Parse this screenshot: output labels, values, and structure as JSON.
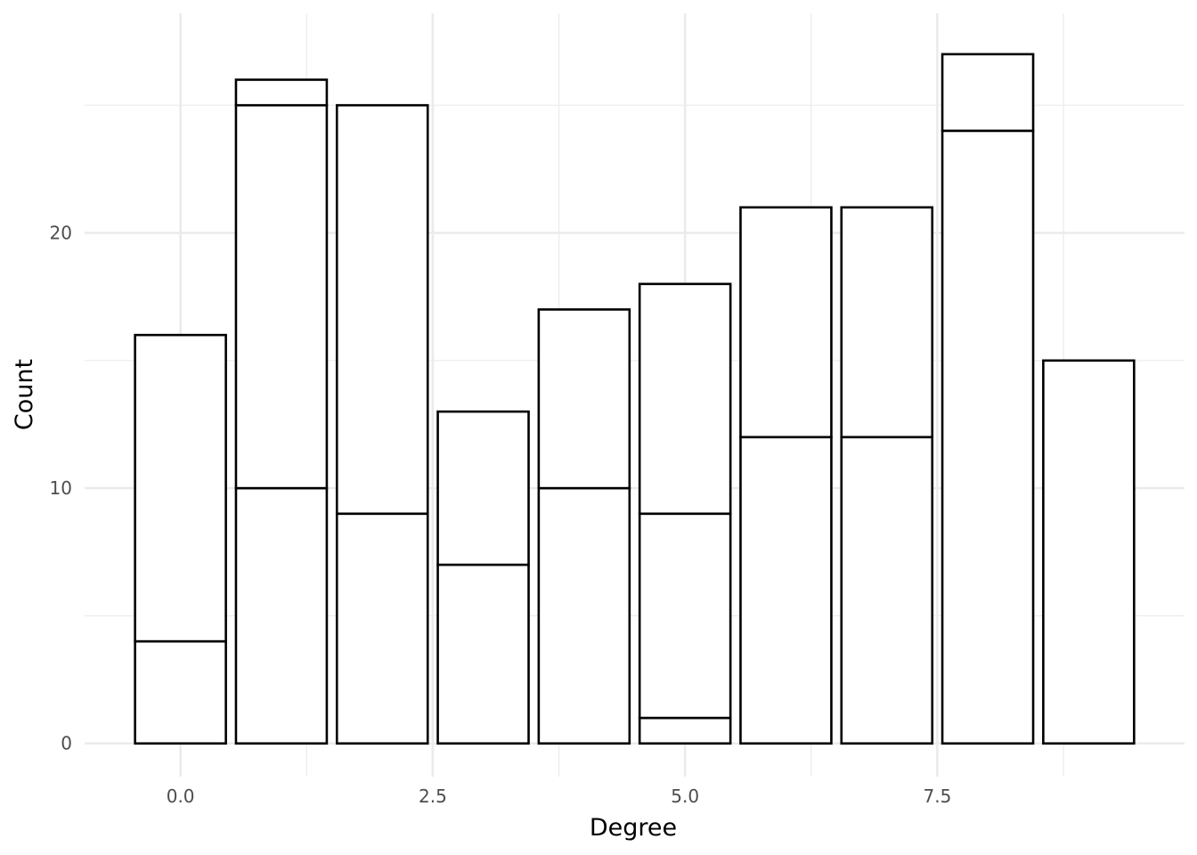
{
  "chart_data": {
    "type": "bar",
    "stacked": true,
    "title": "",
    "xlabel": "Degree",
    "ylabel": "Count",
    "xlim": [
      -0.95,
      9.95
    ],
    "ylim": [
      -1.3,
      28.6
    ],
    "x_ticks": [
      0.0,
      2.5,
      5.0,
      7.5
    ],
    "x_tick_labels": [
      "0.0",
      "2.5",
      "5.0",
      "7.5"
    ],
    "y_ticks": [
      0,
      10,
      20
    ],
    "y_tick_labels": [
      "0",
      "10",
      "20"
    ],
    "grid": true,
    "legend": "none",
    "bar_fill": "#ffffff",
    "bar_outline": "#000000",
    "bars": [
      {
        "x": 0,
        "segments": [
          4,
          12
        ]
      },
      {
        "x": 1,
        "segments": [
          10,
          15,
          1
        ]
      },
      {
        "x": 2,
        "segments": [
          9,
          16
        ]
      },
      {
        "x": 3,
        "segments": [
          7,
          6
        ]
      },
      {
        "x": 4,
        "segments": [
          10,
          7
        ]
      },
      {
        "x": 5,
        "segments": [
          1,
          8,
          9
        ]
      },
      {
        "x": 6,
        "segments": [
          12,
          9
        ]
      },
      {
        "x": 7,
        "segments": [
          12,
          9
        ]
      },
      {
        "x": 8,
        "segments": [
          24,
          3
        ]
      },
      {
        "x": 9,
        "segments": [
          15
        ]
      }
    ]
  }
}
